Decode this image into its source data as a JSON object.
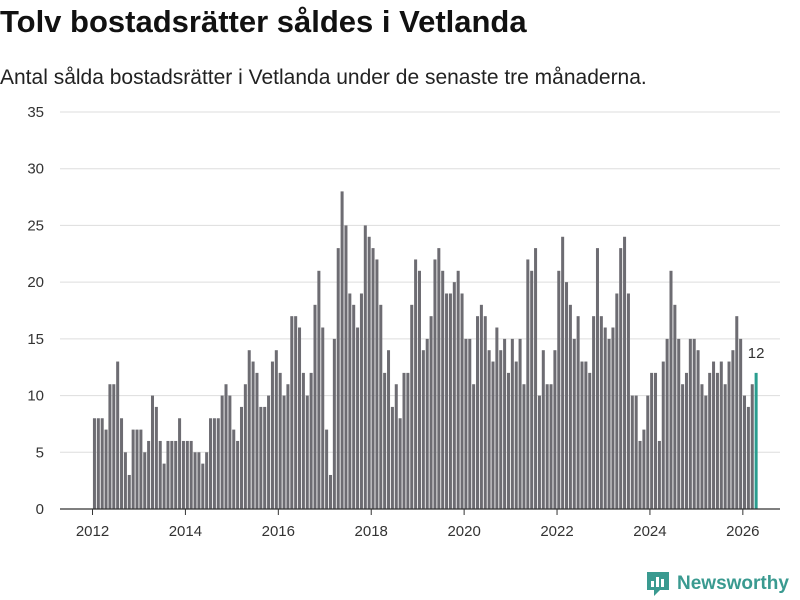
{
  "title": "Tolv bostadsrätter såldes i Vetlanda",
  "subtitle": "Antal sålda bostadsrätter i Vetlanda under de senaste tre månaderna.",
  "brand": {
    "name": "Newsworthy",
    "icon": "newsworthy-logo-icon",
    "color": "#3a9a90"
  },
  "colors": {
    "bar": "#6d6c72",
    "highlight": "#2a9d8f",
    "grid": "#dddddd",
    "axis": "#333333"
  },
  "chart_data": {
    "type": "bar",
    "title": "Tolv bostadsrätter såldes i Vetlanda",
    "subtitle": "Antal sålda bostadsrätter i Vetlanda under de senaste tre månaderna.",
    "xlabel": "",
    "ylabel": "",
    "ylim": [
      0,
      35
    ],
    "yticks": [
      0,
      5,
      10,
      15,
      20,
      25,
      30,
      35
    ],
    "xticks": [
      2012,
      2014,
      2016,
      2018,
      2020,
      2022,
      2024,
      2026
    ],
    "grid": true,
    "x_start": 2012.0,
    "x_step_years": 0.0833,
    "series": [
      {
        "name": "Antal sålda bostadsrätter",
        "values": [
          8,
          8,
          8,
          7,
          11,
          11,
          13,
          8,
          5,
          3,
          7,
          7,
          7,
          5,
          6,
          10,
          9,
          6,
          4,
          6,
          6,
          6,
          8,
          6,
          6,
          6,
          5,
          5,
          4,
          5,
          8,
          8,
          8,
          10,
          11,
          10,
          7,
          6,
          9,
          11,
          14,
          13,
          12,
          9,
          9,
          10,
          13,
          14,
          12,
          10,
          11,
          17,
          17,
          16,
          12,
          10,
          12,
          18,
          21,
          16,
          7,
          3,
          15,
          23,
          28,
          25,
          19,
          18,
          16,
          19,
          25,
          24,
          23,
          22,
          18,
          12,
          14,
          9,
          11,
          8,
          12,
          12,
          18,
          22,
          21,
          14,
          15,
          17,
          22,
          23,
          21,
          19,
          19,
          20,
          21,
          19,
          15,
          15,
          11,
          17,
          18,
          17,
          14,
          13,
          16,
          14,
          15,
          12,
          15,
          13,
          15,
          11,
          22,
          21,
          23,
          10,
          14,
          11,
          11,
          14,
          21,
          24,
          20,
          18,
          15,
          17,
          13,
          13,
          12,
          17,
          23,
          17,
          16,
          15,
          16,
          19,
          23,
          24,
          19,
          10,
          10,
          6,
          7,
          10,
          12,
          12,
          6,
          13,
          15,
          21,
          18,
          15,
          11,
          12,
          15,
          15,
          14,
          11,
          10,
          12,
          13,
          12,
          13,
          11,
          13,
          14,
          17,
          15,
          10,
          9,
          11,
          12
        ]
      }
    ],
    "annotations": [
      {
        "label": "12",
        "target": "last_value"
      }
    ]
  }
}
